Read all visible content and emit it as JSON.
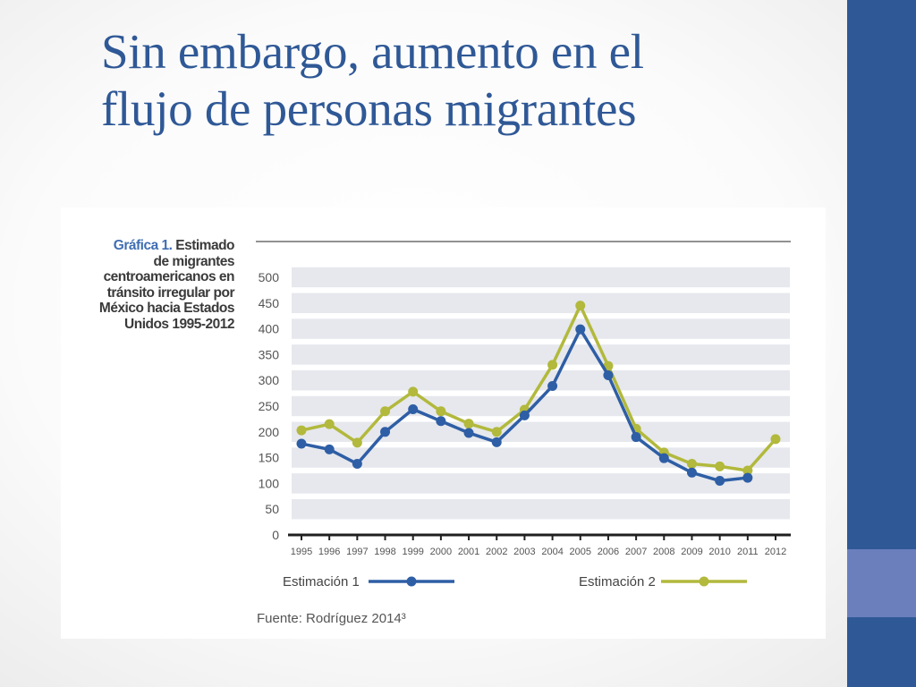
{
  "slide": {
    "title_line1": "Sin embargo, aumento en el",
    "title_line2": "flujo de personas migrantes"
  },
  "figure": {
    "caption_label": "Gráfica 1.",
    "caption_lines": [
      "Estimado",
      "de migrantes",
      "centroamericanos en",
      "tránsito irregular por",
      "México hacia Estados",
      "Unidos 1995-2012"
    ],
    "source": "Fuente: Rodríguez 2014³"
  },
  "colors": {
    "sidebar": "#2f5896",
    "sidebar_accent": "#6b7fbd",
    "title": "#2f5896",
    "series1": "#2e5ea5",
    "series2": "#b2b93c",
    "band": "#e6e8ed"
  },
  "chart_data": {
    "type": "line",
    "title": "",
    "xlabel": "",
    "ylabel": "",
    "ylim": [
      0,
      500
    ],
    "yticks": [
      0,
      50,
      100,
      150,
      200,
      250,
      300,
      350,
      400,
      450,
      500
    ],
    "x": [
      "1995",
      "1996",
      "1997",
      "1998",
      "1999",
      "2000",
      "2001",
      "2002",
      "2003",
      "2004",
      "2005",
      "2006",
      "2007",
      "2008",
      "2009",
      "2010",
      "2011",
      "2012"
    ],
    "series": [
      {
        "name": "Estimación 1",
        "color": "#2e5ea5",
        "values": [
          177,
          166,
          138,
          200,
          244,
          221,
          198,
          180,
          232,
          289,
          399,
          310,
          190,
          149,
          121,
          105,
          111,
          null
        ]
      },
      {
        "name": "Estimación 2",
        "color": "#b2b93c",
        "values": [
          203,
          215,
          179,
          240,
          278,
          240,
          216,
          200,
          243,
          330,
          445,
          328,
          206,
          160,
          138,
          133,
          125,
          186
        ]
      }
    ],
    "grid": "horizontal bands",
    "legend": "bottom"
  }
}
